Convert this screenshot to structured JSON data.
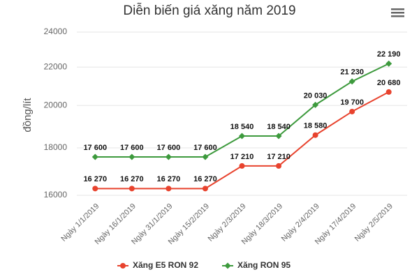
{
  "chart_data": {
    "type": "line",
    "title": "Diễn biến giá xăng năm 2019",
    "y_label": "đồng/lít",
    "categories": [
      "Ngày 1/1/2019",
      "Ngày 16/1/2019",
      "Ngày 31/1/2019",
      "Ngày 15/2/2019",
      "Ngày 2/3/2019",
      "Ngày 18/3/2019",
      "Ngày 2/4/2019",
      "Ngày 17/4/2019",
      "Ngày 2/5/2019"
    ],
    "series": [
      {
        "name": "Xăng E5 RON 92",
        "color": "#e8432e",
        "marker": "circle",
        "values": [
          16270,
          16270,
          16270,
          16270,
          17210,
          17210,
          18580,
          19700,
          20680
        ],
        "value_labels": [
          "16 270",
          "16 270",
          "16 270",
          "16 270",
          "17 210",
          "17 210",
          "18 580",
          "19 700",
          "20 680"
        ]
      },
      {
        "name": "Xăng RON 95",
        "color": "#3d9a3d",
        "marker": "diamond",
        "values": [
          17600,
          17600,
          17600,
          17600,
          18540,
          18540,
          20030,
          21230,
          22190
        ],
        "value_labels": [
          "17 600",
          "17 600",
          "17 600",
          "17 600",
          "18 540",
          "18 540",
          "20 030",
          "21 230",
          "22 190"
        ]
      }
    ],
    "ylim": [
      16000,
      24000
    ],
    "yticks": [
      16000,
      18000,
      20000,
      22000,
      24000
    ],
    "y_scale": "log",
    "grid": true,
    "legend": "bottom"
  }
}
